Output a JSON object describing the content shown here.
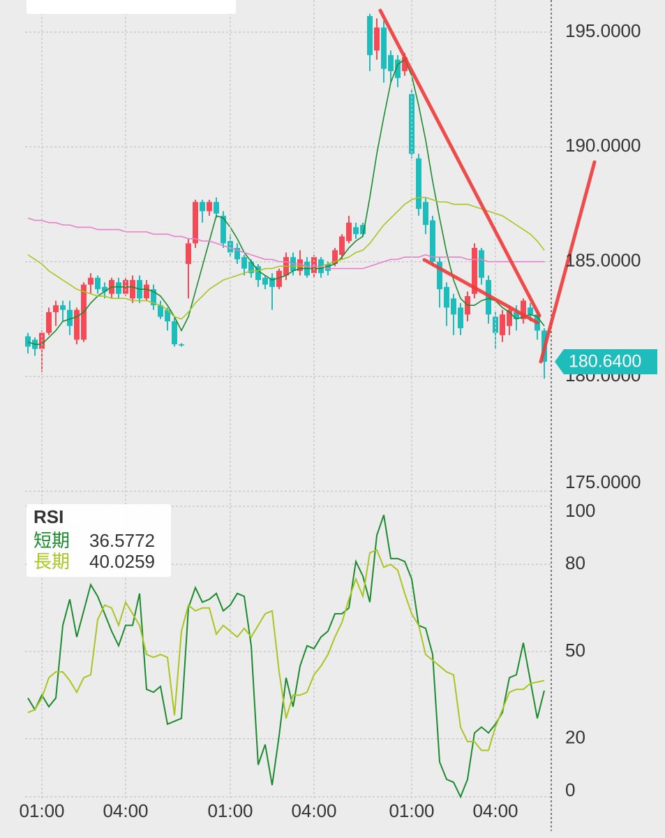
{
  "chart_data": [
    {
      "type": "candlestick",
      "open": [
        181.75,
        181.6,
        181.2,
        181.9,
        182.8,
        183.1,
        182.9,
        181.6,
        181.6,
        184.0,
        184.3,
        183.9,
        183.6,
        184.1,
        183.6,
        183.4,
        184.2,
        183.4,
        183.8,
        183.1,
        182.9,
        182.4,
        181.4,
        184.9,
        185.8,
        187.6,
        187.2,
        187.6,
        187.0,
        185.9,
        185.6,
        185.2,
        185.0,
        184.8,
        184.3,
        184.3,
        183.9,
        184.4,
        185.2,
        184.6,
        185.0,
        184.5,
        185.1,
        184.9,
        184.9,
        185.3,
        185.9,
        186.5,
        186.6,
        195.7,
        194.2,
        195.2,
        194.0,
        193.8,
        193.3,
        192.3,
        189.5,
        187.6,
        186.8,
        185.0,
        183.9,
        183.4,
        183.0,
        182.7,
        183.6,
        185.5,
        184.2,
        182.6,
        181.8,
        182.2,
        182.8,
        182.5,
        183.0,
        182.7,
        182.0
      ],
      "high": [
        181.9,
        181.7,
        182.0,
        183.0,
        183.3,
        183.3,
        183.3,
        183.0,
        184.1,
        184.5,
        184.4,
        184.1,
        184.3,
        184.3,
        184.3,
        184.4,
        184.4,
        184.2,
        184.0,
        183.3,
        183.0,
        182.6,
        181.45,
        186.0,
        187.7,
        187.7,
        187.7,
        187.8,
        187.2,
        186.2,
        185.8,
        185.3,
        185.1,
        184.9,
        184.4,
        184.5,
        184.7,
        185.4,
        185.4,
        185.5,
        185.2,
        185.3,
        185.2,
        185.0,
        185.6,
        186.2,
        187.0,
        186.7,
        186.7,
        195.8,
        195.6,
        195.5,
        194.2,
        194.0,
        194.1,
        192.5,
        189.7,
        187.8,
        187.0,
        185.2,
        184.1,
        183.6,
        183.2,
        183.7,
        185.8,
        185.6,
        184.4,
        182.8,
        182.9,
        183.1,
        183.1,
        183.4,
        183.2,
        182.9,
        182.1
      ],
      "low": [
        181.0,
        180.9,
        180.2,
        181.8,
        182.2,
        182.4,
        181.8,
        181.4,
        181.5,
        183.6,
        183.6,
        183.4,
        183.4,
        183.4,
        183.5,
        183.2,
        183.2,
        183.3,
        182.9,
        182.5,
        182.0,
        181.3,
        181.3,
        183.4,
        185.6,
        186.7,
        187.0,
        186.9,
        185.6,
        185.2,
        184.9,
        184.4,
        184.3,
        183.9,
        183.8,
        182.9,
        183.8,
        184.2,
        184.4,
        184.4,
        184.3,
        184.3,
        184.3,
        184.4,
        184.8,
        185.1,
        185.8,
        186.0,
        186.1,
        193.3,
        193.8,
        192.8,
        192.8,
        192.6,
        193.1,
        189.5,
        187.0,
        186.2,
        184.8,
        183.0,
        182.2,
        181.8,
        181.8,
        182.4,
        183.4,
        184.0,
        182.3,
        181.2,
        181.5,
        181.8,
        182.0,
        182.3,
        182.4,
        181.6,
        179.9
      ],
      "close": [
        181.3,
        181.2,
        181.9,
        182.8,
        183.1,
        182.9,
        182.2,
        182.9,
        184.0,
        184.3,
        183.8,
        183.7,
        184.2,
        183.6,
        184.2,
        184.2,
        183.4,
        184.0,
        183.1,
        182.6,
        182.4,
        181.4,
        181.35,
        185.8,
        187.6,
        187.2,
        187.6,
        187.1,
        185.8,
        185.4,
        185.1,
        184.7,
        184.5,
        184.2,
        184.0,
        183.9,
        184.6,
        185.2,
        184.6,
        185.1,
        184.4,
        185.2,
        184.5,
        184.6,
        185.5,
        186.1,
        186.7,
        186.2,
        186.2,
        194.0,
        195.2,
        193.4,
        193.3,
        193.0,
        193.9,
        189.7,
        187.3,
        186.6,
        185.0,
        183.8,
        183.0,
        182.7,
        182.1,
        183.5,
        185.6,
        184.3,
        182.7,
        181.9,
        182.7,
        182.9,
        182.5,
        183.3,
        182.7,
        182.0,
        180.64
      ],
      "up_color": "#f24b57",
      "down_color": "#1fbcbc",
      "series": [
        {
          "color": "#1a8a2e",
          "values": [
            181.5,
            181.4,
            181.4,
            181.7,
            182.0,
            182.4,
            182.5,
            182.6,
            182.8,
            183.2,
            183.5,
            183.7,
            183.9,
            183.9,
            183.9,
            183.9,
            183.8,
            183.8,
            183.7,
            183.5,
            183.1,
            182.6,
            182.0,
            182.6,
            183.7,
            184.8,
            185.9,
            187.0,
            186.9,
            186.5,
            186.0,
            185.4,
            185.0,
            184.6,
            184.4,
            184.2,
            184.3,
            184.4,
            184.6,
            184.7,
            184.7,
            184.7,
            184.7,
            184.8,
            184.9,
            185.2,
            185.6,
            185.9,
            186.1,
            187.8,
            189.7,
            191.3,
            192.8,
            193.6,
            193.8,
            193.1,
            191.8,
            190.3,
            188.5,
            186.9,
            185.4,
            184.2,
            183.4,
            183.1,
            183.1,
            183.3,
            183.4,
            183.3,
            183.0,
            182.8,
            182.5,
            182.6,
            182.7,
            182.6,
            182.2
          ]
        },
        {
          "color": "#a8c520",
          "values": [
            185.3,
            185.1,
            184.9,
            184.6,
            184.4,
            184.2,
            184.0,
            183.8,
            183.7,
            183.6,
            183.5,
            183.5,
            183.4,
            183.4,
            183.4,
            183.3,
            183.3,
            183.3,
            183.2,
            183.1,
            182.9,
            182.6,
            182.5,
            182.8,
            183.2,
            183.5,
            183.8,
            184.0,
            184.2,
            184.3,
            184.4,
            184.5,
            184.6,
            184.6,
            184.7,
            184.7,
            184.8,
            184.8,
            184.8,
            184.8,
            184.8,
            184.8,
            184.8,
            184.9,
            185.0,
            185.1,
            185.2,
            185.4,
            185.5,
            185.8,
            186.2,
            186.6,
            186.9,
            187.2,
            187.5,
            187.7,
            187.8,
            187.8,
            187.7,
            187.6,
            187.6,
            187.5,
            187.5,
            187.5,
            187.4,
            187.3,
            187.2,
            187.1,
            187.0,
            186.8,
            186.6,
            186.4,
            186.2,
            185.9,
            185.5
          ]
        },
        {
          "color": "#e87fc8",
          "values": [
            186.9,
            186.8,
            186.8,
            186.7,
            186.7,
            186.6,
            186.6,
            186.5,
            186.5,
            186.5,
            186.4,
            186.4,
            186.4,
            186.4,
            186.3,
            186.3,
            186.3,
            186.3,
            186.2,
            186.2,
            186.2,
            186.1,
            186.1,
            186.0,
            186.0,
            185.9,
            185.9,
            185.8,
            185.7,
            185.6,
            185.5,
            185.4,
            185.3,
            185.2,
            185.1,
            185.1,
            185.0,
            185.0,
            184.9,
            184.9,
            184.8,
            184.8,
            184.8,
            184.7,
            184.7,
            184.7,
            184.7,
            184.7,
            184.7,
            184.8,
            184.9,
            185.0,
            185.1,
            185.1,
            185.2,
            185.2,
            185.2,
            185.3,
            185.2,
            185.2,
            185.2,
            185.2,
            185.2,
            185.1,
            185.1,
            185.1,
            185.0,
            185.0,
            185.0,
            185.0,
            185.0,
            185.0,
            185.0,
            185.0,
            185.0
          ]
        }
      ],
      "ylim": [
        174.8,
        196.4
      ],
      "yticks": [
        {
          "value": 175,
          "label": "175.0000"
        },
        {
          "value": 180,
          "label": "180.0000"
        },
        {
          "value": 185,
          "label": "185.0000"
        },
        {
          "value": 190,
          "label": "190.0000"
        },
        {
          "value": 195,
          "label": "195.0000"
        }
      ],
      "grid": true,
      "last_value": {
        "value": 180.64,
        "label": "180.6400"
      }
    },
    {
      "type": "line",
      "title": "RSI",
      "categories": [
        null,
        null,
        "01:00",
        null,
        null,
        null,
        null,
        null,
        null,
        null,
        null,
        null,
        null,
        null,
        "04:00",
        null,
        null,
        null,
        null,
        null,
        null,
        null,
        null,
        null,
        null,
        null,
        null,
        null,
        null,
        "01:00",
        null,
        null,
        null,
        null,
        null,
        null,
        null,
        null,
        null,
        null,
        null,
        "04:00",
        null,
        null,
        null,
        null,
        null,
        null,
        null,
        null,
        null,
        null,
        null,
        null,
        null,
        "01:00",
        null,
        null,
        null,
        null,
        null,
        null,
        null,
        null,
        null,
        null,
        null,
        "04:00",
        null,
        null,
        null,
        null,
        null,
        null,
        null
      ],
      "series": [
        {
          "name": "短期",
          "color": "#1a8a2e",
          "legend_value": "36.5772",
          "values": [
            34,
            30,
            35,
            31,
            34,
            59,
            68,
            55,
            64,
            73,
            69,
            63,
            57,
            52,
            59,
            59,
            70,
            37,
            36,
            38,
            25,
            26,
            27,
            65,
            72,
            67,
            68,
            70,
            64,
            66,
            70,
            69,
            52,
            11,
            18,
            4,
            21,
            41,
            31,
            45,
            52,
            51,
            55,
            57,
            63,
            63,
            65,
            81,
            76,
            67,
            90,
            97,
            82,
            82,
            81,
            75,
            59,
            58,
            49,
            12,
            6,
            5,
            0,
            6,
            22,
            24,
            22,
            25,
            29,
            41,
            42,
            53,
            40,
            27,
            36.5772
          ]
        },
        {
          "name": "長期",
          "color": "#a8c520",
          "legend_value": "40.0259",
          "values": [
            29,
            30,
            34,
            41,
            43,
            43,
            40,
            36,
            41,
            42,
            61,
            66,
            65,
            59,
            67,
            63,
            59,
            49,
            48,
            49,
            48,
            28,
            57,
            66,
            64,
            65,
            65,
            56,
            59,
            57,
            55,
            58,
            55,
            59,
            63,
            64,
            43,
            27,
            35,
            35,
            36,
            42,
            45,
            49,
            55,
            60,
            68,
            75,
            69,
            84,
            85,
            79,
            80,
            78,
            70,
            63,
            59,
            49,
            47,
            45,
            43,
            42,
            24,
            19,
            19,
            16,
            16,
            24,
            30,
            36,
            37,
            37,
            39,
            39.5,
            40.0259
          ]
        }
      ],
      "ylim": [
        0,
        100
      ],
      "yticks": [
        0,
        20,
        50,
        80,
        100
      ],
      "grid": true
    }
  ]
}
